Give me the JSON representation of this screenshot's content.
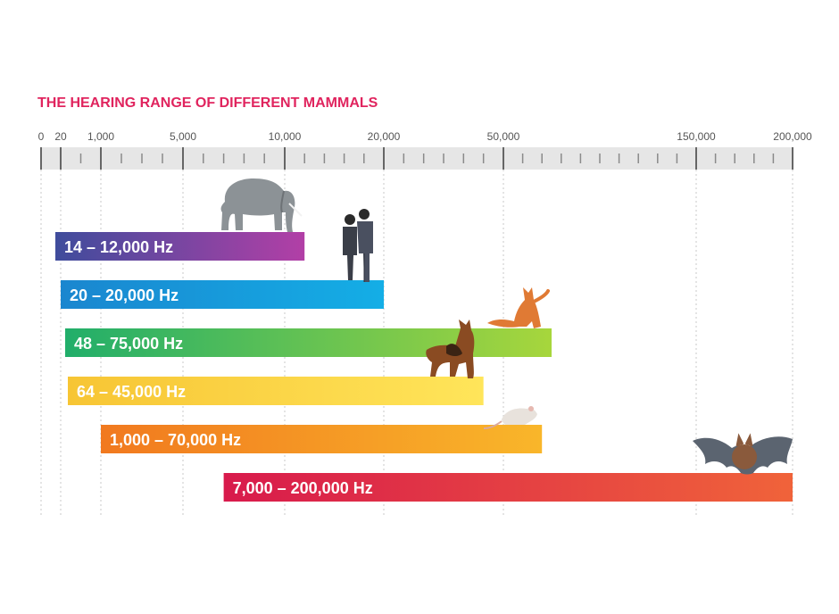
{
  "chart_data": {
    "type": "bar",
    "orientation": "horizontal",
    "title": "THE HEARING RANGE OF DIFFERENT MAMMALS",
    "xlabel": "",
    "ylabel": "",
    "xlim": [
      0,
      200000
    ],
    "grid": true,
    "ticks": [
      {
        "value": 0,
        "label": "0"
      },
      {
        "value": 20,
        "label": "20"
      },
      {
        "value": 1000,
        "label": "1,000"
      },
      {
        "value": 5000,
        "label": "5,000"
      },
      {
        "value": 10000,
        "label": "10,000"
      },
      {
        "value": 20000,
        "label": "20,000"
      },
      {
        "value": 50000,
        "label": "50,000"
      },
      {
        "value": 150000,
        "label": "150,000"
      },
      {
        "value": 200000,
        "label": "200,000"
      }
    ],
    "ranges": [
      {
        "label": "14 – 12,000 Hz",
        "low": 14,
        "high": 12000,
        "icon": "elephant-icon",
        "colors": [
          "#3f4c9c",
          "#b23fa6"
        ]
      },
      {
        "label": "20 – 20,000 Hz",
        "low": 20,
        "high": 20000,
        "icon": "human-couple-icon",
        "colors": [
          "#1a86cf",
          "#14aee6"
        ]
      },
      {
        "label": "48 – 75,000 Hz",
        "low": 48,
        "high": 75000,
        "icon": "cat-icon",
        "colors": [
          "#21ae6a",
          "#a7d63c"
        ]
      },
      {
        "label": "64 – 45,000 Hz",
        "low": 64,
        "high": 45000,
        "icon": "dog-icon",
        "colors": [
          "#f7c534",
          "#ffe55a"
        ]
      },
      {
        "label": "1,000 – 70,000 Hz",
        "low": 1000,
        "high": 70000,
        "icon": "rat-icon",
        "colors": [
          "#f1791f",
          "#f9b62a"
        ]
      },
      {
        "label": "7,000 – 200,000 Hz",
        "low": 7000,
        "high": 200000,
        "icon": "bat-icon",
        "colors": [
          "#d81a4c",
          "#f0633a"
        ]
      }
    ],
    "title_color": "#e0245e"
  }
}
